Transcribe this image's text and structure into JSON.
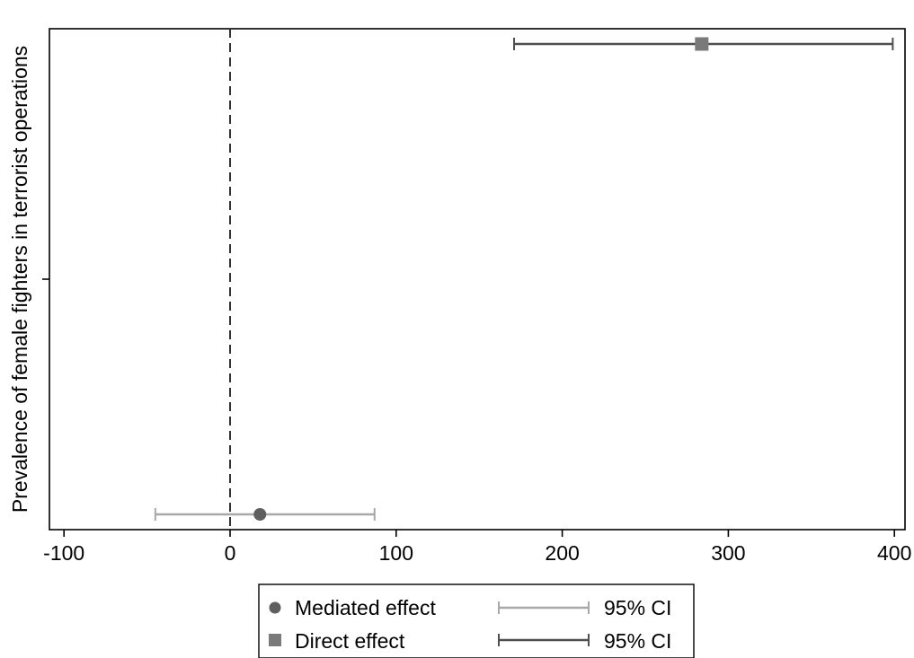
{
  "chart_data": {
    "type": "scatter",
    "title": "",
    "xlabel": "",
    "ylabel": "Prevalence of female fighters in terrorist operations",
    "xlim": [
      -110,
      410
    ],
    "x_ticks": [
      -100,
      0,
      100,
      200,
      300,
      400
    ],
    "x_tick_labels": [
      "-100",
      "0",
      "100",
      "200",
      "300",
      "400"
    ],
    "reference_line": {
      "x": 0,
      "style": "dashed"
    },
    "grid": false,
    "series": [
      {
        "name": "Mediated effect",
        "marker": "circle",
        "color": "#5f5f5f",
        "ci_color": "#a8a8a8",
        "estimate": 18,
        "ci": [
          -45,
          87
        ],
        "position": "bottom"
      },
      {
        "name": "Direct effect",
        "marker": "square",
        "color": "#7a7a7a",
        "ci_color": "#4f4f4f",
        "estimate": 284,
        "ci": [
          171,
          399
        ],
        "position": "top"
      }
    ],
    "legend": {
      "placement": "bottom",
      "entries": [
        {
          "label": "Mediated effect",
          "ci_label": "95% CI"
        },
        {
          "label": "Direct effect",
          "ci_label": "95% CI"
        }
      ]
    }
  }
}
